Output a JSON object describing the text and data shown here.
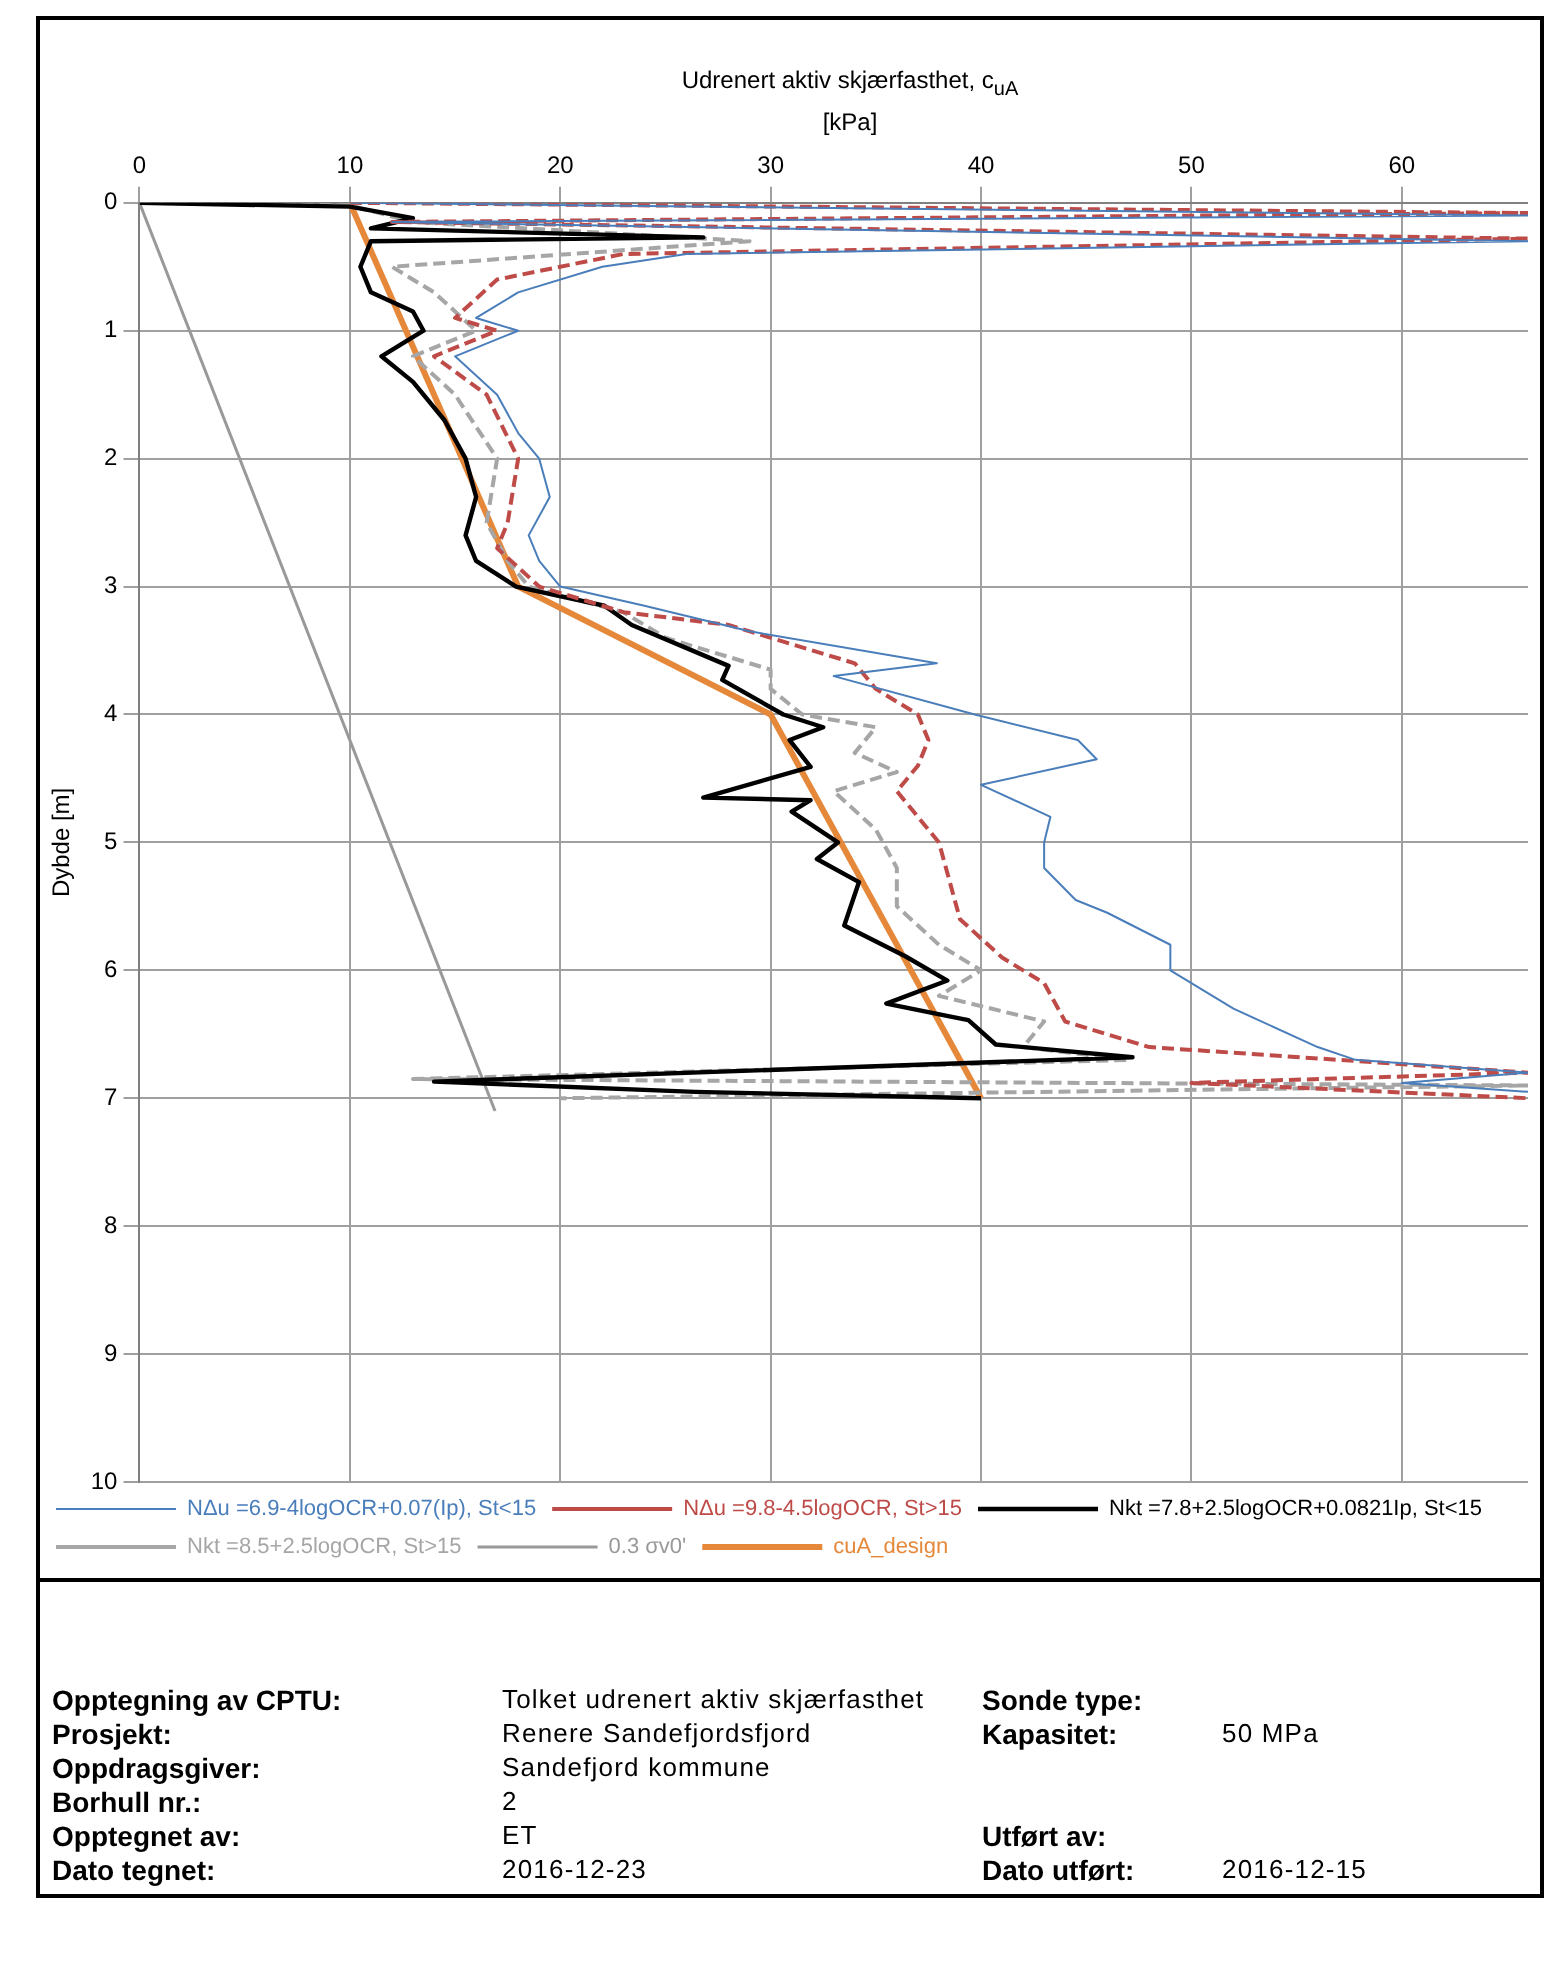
{
  "chart_data": {
    "type": "line",
    "xlabel": "Udrenert aktiv skjærfasthet, c$_{uA}$\n[kPa]",
    "ylabel": "Dybde [m]",
    "xlim": [
      0,
      66
    ],
    "xticks": [
      0,
      10,
      20,
      30,
      40,
      50,
      60
    ],
    "ylim": [
      10,
      0
    ],
    "yticks": [
      0,
      1,
      2,
      3,
      4,
      5,
      6,
      7,
      8,
      9,
      10
    ],
    "grid": true,
    "legend": "bottom",
    "marker": "none",
    "series": [
      {
        "name": "NΔu =6.9-4logOCR+0.07(Ip), St<15",
        "color": "#4a7ebb",
        "line_style": "solid",
        "x": [
          10,
          66,
          12,
          66,
          26,
          22,
          18,
          16,
          18,
          15,
          17,
          18,
          19,
          19.5,
          18.5,
          19,
          20,
          24,
          29,
          37.9,
          33,
          39.7,
          44.6,
          45.5,
          40,
          43.3,
          43,
          43,
          44.5,
          46,
          49,
          49,
          52,
          56,
          57.8,
          66,
          60,
          66
        ],
        "values": [
          0,
          0.1,
          0.15,
          0.3,
          0.4,
          0.5,
          0.7,
          0.9,
          1,
          1.2,
          1.5,
          1.8,
          2,
          2.3,
          2.6,
          2.8,
          3,
          3.15,
          3.35,
          3.6,
          3.7,
          4,
          4.2,
          4.35,
          4.55,
          4.8,
          5,
          5.2,
          5.45,
          5.55,
          5.8,
          6,
          6.3,
          6.6,
          6.7,
          6.8,
          6.88,
          6.95
        ]
      },
      {
        "name": "NΔu =9.8-4.5logOCR, St>15",
        "color": "#be4b48",
        "line_style": "dashed",
        "x": [
          10,
          66,
          12,
          66,
          23,
          17,
          15,
          17,
          14,
          16.5,
          18,
          17.5,
          17,
          19,
          23,
          28,
          34,
          35,
          37,
          37.5,
          37,
          36,
          37,
          38,
          38.5,
          39,
          41,
          43,
          44,
          48,
          66,
          50,
          66
        ],
        "values": [
          0,
          0.08,
          0.15,
          0.28,
          0.4,
          0.6,
          0.9,
          1,
          1.2,
          1.5,
          2,
          2.5,
          2.7,
          3,
          3.2,
          3.3,
          3.6,
          3.8,
          4,
          4.2,
          4.4,
          4.6,
          4.8,
          5,
          5.3,
          5.6,
          5.9,
          6.1,
          6.4,
          6.6,
          6.8,
          6.88,
          7
        ]
      },
      {
        "name": "Nkt =7.8+2.5logOCR+0.0821Ip, St<15",
        "color": "#000000",
        "line_style": "solid",
        "x": [
          0,
          10,
          13,
          11,
          26.8,
          11,
          10.5,
          11,
          13,
          13.5,
          11.5,
          13,
          14.5,
          15.5,
          16,
          15.5,
          16,
          17.9,
          22.1,
          23.4,
          28,
          27.7,
          30.6,
          32.5,
          30.9,
          31.9,
          26.8,
          31.9,
          31,
          33.2,
          32.2,
          34.2,
          33.5,
          36.4,
          38.4,
          35.5,
          39.4,
          40.7,
          47.2,
          14,
          26.4,
          40
        ],
        "values": [
          0,
          0.03,
          0.12,
          0.2,
          0.27,
          0.3,
          0.5,
          0.7,
          0.85,
          1,
          1.2,
          1.4,
          1.7,
          2,
          2.3,
          2.6,
          2.8,
          3,
          3.15,
          3.3,
          3.62,
          3.73,
          4,
          4.1,
          4.2,
          4.41,
          4.65,
          4.67,
          4.76,
          5,
          5.13,
          5.31,
          5.65,
          5.89,
          6.08,
          6.26,
          6.39,
          6.58,
          6.68,
          6.87,
          6.95,
          7
        ]
      },
      {
        "name": "Nkt =8.5+2.5logOCR, St>15",
        "color": "#a6a6a6",
        "line_style": "dashed",
        "x": [
          0,
          10,
          13,
          29,
          12,
          14,
          16,
          13,
          15,
          17,
          16.5,
          17.5,
          18.5,
          23,
          25,
          30,
          30,
          31.5,
          35,
          34,
          36,
          33,
          35,
          36,
          36,
          38,
          40,
          38,
          43,
          42,
          47,
          13,
          66,
          20
        ],
        "values": [
          0,
          0.02,
          0.15,
          0.3,
          0.5,
          0.7,
          1,
          1.2,
          1.5,
          2,
          2.5,
          2.8,
          3,
          3.2,
          3.4,
          3.65,
          3.8,
          4,
          4.1,
          4.3,
          4.45,
          4.6,
          4.9,
          5.2,
          5.5,
          5.8,
          6,
          6.2,
          6.4,
          6.6,
          6.7,
          6.85,
          6.9,
          7
        ]
      },
      {
        "name": "0.3 σv0'",
        "color": "#999999",
        "line_style": "solid",
        "x": [
          0,
          16.9
        ],
        "values": [
          0,
          7.1
        ]
      },
      {
        "name": "cuA_design",
        "color": "#e6883a",
        "line_style": "solid",
        "x": [
          10,
          18,
          30,
          40
        ],
        "values": [
          0,
          3,
          4,
          7
        ]
      }
    ],
    "annotations": [
      "Opptegning av CPTU:",
      "Tolket udrenert aktiv skjærfasthet",
      "Sonde type:",
      "Prosjekt:",
      "Renere Sandefjordsfjord",
      "Kapasitet:",
      "50 MPa",
      "Oppdragsgiver:",
      "Sandefjord kommune",
      "Borhull nr.:",
      "2",
      "Opptegnet av:",
      "ET",
      "Utført av:",
      "Dato tegnet:",
      "2016-12-23",
      "Dato utført:",
      "2016-12-15"
    ]
  }
}
